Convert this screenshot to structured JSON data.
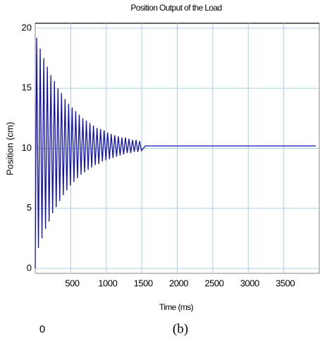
{
  "chart_data": {
    "type": "line",
    "title": "Position Output of the Load",
    "x_label": "Time (ms)",
    "y_label": "Position (cm)",
    "annotations": [
      "0",
      "(b)"
    ],
    "xlim": [
      0,
      4000
    ],
    "ylim": [
      0,
      20
    ],
    "xticks": [
      500,
      1000,
      1500,
      2000,
      2500,
      3000,
      3500
    ],
    "yticks": [
      0,
      5,
      10,
      15,
      20
    ],
    "grid": true,
    "x": [
      0,
      20,
      45,
      70,
      95,
      120,
      145,
      170,
      195,
      220,
      245,
      270,
      295,
      320,
      345,
      370,
      395,
      420,
      445,
      470,
      495,
      520,
      545,
      570,
      595,
      620,
      645,
      670,
      695,
      720,
      745,
      770,
      795,
      820,
      845,
      870,
      895,
      920,
      945,
      970,
      995,
      1020,
      1045,
      1070,
      1095,
      1120,
      1145,
      1170,
      1195,
      1220,
      1245,
      1270,
      1295,
      1320,
      1345,
      1370,
      1395,
      1420,
      1445,
      1470,
      1495,
      1550,
      3950
    ],
    "series": [
      {
        "name": "Position",
        "color": "#1010b0",
        "values": [
          0,
          19.2,
          1.7,
          18.3,
          2.5,
          17.5,
          3.3,
          16.8,
          3.9,
          16.1,
          4.6,
          15.6,
          5.1,
          15.0,
          5.6,
          14.6,
          6.1,
          14.1,
          6.5,
          13.7,
          6.9,
          13.4,
          7.2,
          13.1,
          7.5,
          12.8,
          7.8,
          12.5,
          8.0,
          12.3,
          8.2,
          12.1,
          8.4,
          11.9,
          8.6,
          11.7,
          8.7,
          11.6,
          8.9,
          11.5,
          9.0,
          11.3,
          9.1,
          11.2,
          9.2,
          11.1,
          9.3,
          11.0,
          9.4,
          10.9,
          9.5,
          10.9,
          9.6,
          10.8,
          9.6,
          10.7,
          9.7,
          10.7,
          9.7,
          10.6,
          9.8,
          10.2,
          10.2
        ]
      }
    ]
  }
}
